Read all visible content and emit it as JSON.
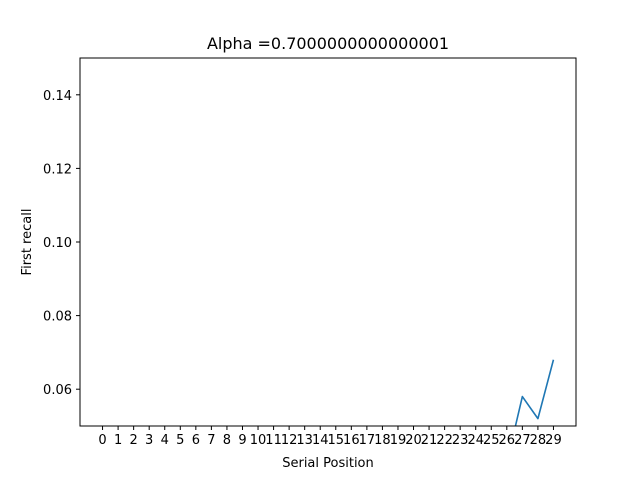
{
  "chart_data": {
    "type": "line",
    "title": "Alpha =0.7000000000000001",
    "xlabel": "Serial Position",
    "ylabel": "First recall",
    "x_ticks": [
      "0",
      "1",
      "2",
      "3",
      "4",
      "5",
      "6",
      "7",
      "8",
      "9",
      "10",
      "11",
      "12",
      "13",
      "14",
      "15",
      "16",
      "17",
      "18",
      "19",
      "20",
      "21",
      "22",
      "23",
      "24",
      "25",
      "26",
      "27",
      "28",
      "29"
    ],
    "y_ticks": [
      "0.06",
      "0.08",
      "0.10",
      "0.12",
      "0.14"
    ],
    "xlim": [
      -1.45,
      30.45
    ],
    "ylim": [
      0.05,
      0.15
    ],
    "grid": false,
    "series": [
      {
        "color": "#1f77b4",
        "x": [
          26,
          27,
          28,
          29
        ],
        "y": [
          0.04,
          0.058,
          0.052,
          0.068
        ]
      }
    ]
  }
}
